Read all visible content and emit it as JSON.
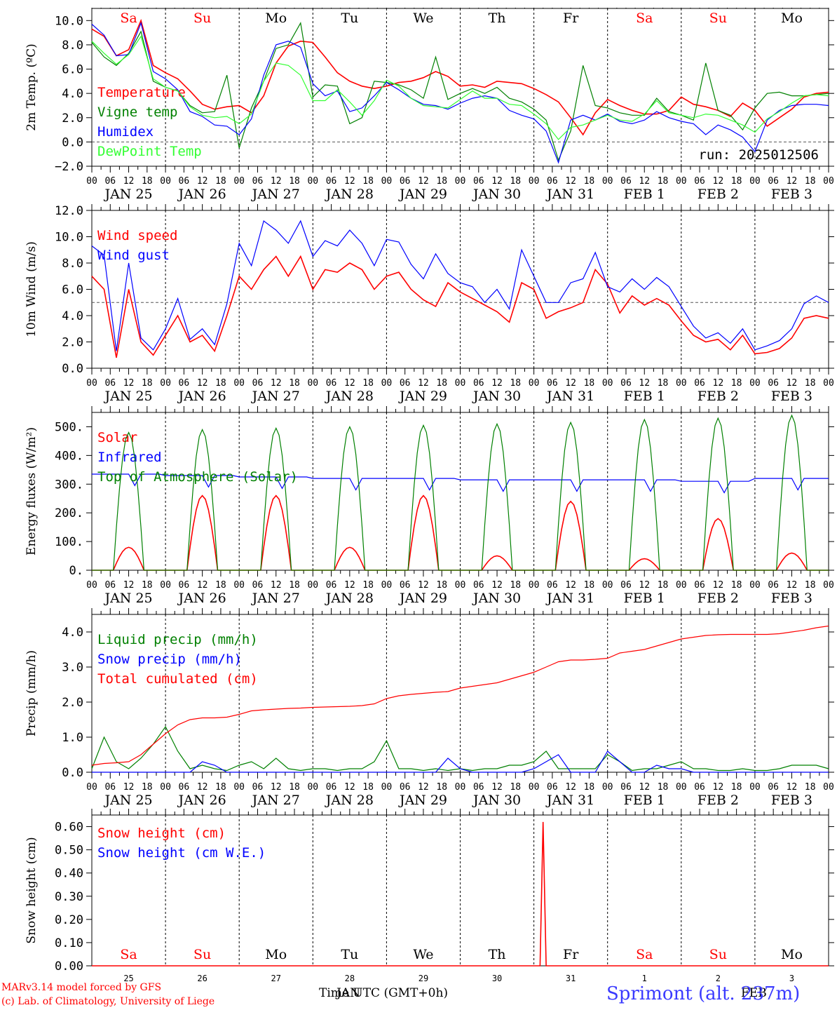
{
  "footer": {
    "model_line1": "MARv3.14 model forced by GFS",
    "model_line2": "(c) Lab. of Climatology, University of Liege",
    "time_label": "Time UTC (GMT+0h)",
    "overlap_label": "JAN",
    "overlap_label2": "FEB",
    "location": "Sprimont (alt. 237m)"
  },
  "colors": {
    "red": "#ff0000",
    "blue": "#0000ff",
    "green": "#008000",
    "lightgreen": "#33ff33",
    "black": "#000000",
    "weekend": "#ff0000"
  },
  "days": {
    "weekdays": [
      "Sa",
      "Su",
      "Mo",
      "Tu",
      "We",
      "Th",
      "Fr",
      "Sa",
      "Su",
      "Mo"
    ],
    "weekend": [
      true,
      true,
      false,
      false,
      false,
      false,
      false,
      true,
      true,
      false
    ],
    "date_labels": [
      "JAN 25",
      "JAN 26",
      "JAN 27",
      "JAN 28",
      "JAN 29",
      "JAN 30",
      "JAN 31",
      "FEB  1",
      "FEB  2",
      "FEB  3"
    ],
    "hour_labels": [
      "00",
      "06",
      "12",
      "18"
    ],
    "last_hour_label": "00",
    "day_numbers": [
      "25",
      "26",
      "27",
      "28",
      "29",
      "30",
      "31",
      "1",
      "2",
      "3"
    ]
  },
  "chart_data": [
    {
      "type": "line",
      "ylabel": "2m Temp. (ºC)",
      "ylim": [
        -2,
        11
      ],
      "yticks": [
        "−2.0",
        "0.0",
        "2.0",
        "4.0",
        "6.0",
        "8.0",
        "10.0"
      ],
      "ytick_values": [
        -2,
        0,
        2,
        4,
        6,
        8,
        10
      ],
      "ref_line": 0,
      "annotation": "run: 2025012506",
      "x_unit": "hours from 00 UTC JAN 25 (3-hourly)",
      "series": [
        {
          "name": "Temperature",
          "color": "red",
          "values": [
            9.3,
            8.7,
            7.1,
            7.6,
            10.0,
            6.3,
            5.7,
            5.2,
            4.2,
            3.1,
            2.7,
            2.9,
            3.0,
            2.4,
            3.8,
            6.5,
            7.9,
            8.3,
            8.2,
            7.0,
            5.7,
            5.0,
            4.6,
            4.4,
            4.6,
            4.9,
            5.0,
            5.3,
            5.8,
            5.4,
            4.6,
            4.7,
            4.5,
            5.0,
            4.9,
            4.8,
            4.4,
            3.9,
            3.3,
            2.0,
            0.6,
            2.4,
            3.5,
            3.0,
            2.6,
            2.3,
            2.3,
            2.6,
            3.7,
            3.1,
            2.9,
            2.6,
            2.1,
            3.2,
            2.6,
            1.3,
            2.0,
            2.7,
            3.7,
            4.0,
            4.1
          ]
        },
        {
          "name": "Vigne temp",
          "color": "green",
          "values": [
            8.2,
            7.0,
            6.3,
            7.3,
            9.1,
            5.0,
            4.5,
            4.2,
            3.0,
            2.4,
            2.5,
            5.5,
            -0.5,
            2.8,
            5.0,
            7.7,
            8.0,
            9.8,
            3.7,
            4.7,
            4.6,
            1.5,
            2.0,
            5.0,
            4.9,
            4.7,
            4.3,
            3.6,
            7.0,
            3.5,
            4.0,
            4.4,
            4.0,
            4.5,
            3.6,
            3.3,
            2.7,
            1.8,
            -1.5,
            0.9,
            6.3,
            3.0,
            2.8,
            2.4,
            2.2,
            2.2,
            3.6,
            2.5,
            2.2,
            1.8,
            6.5,
            2.6,
            2.2,
            1.0,
            2.8,
            4.0,
            4.1,
            3.8,
            3.8,
            3.9,
            4.0
          ]
        },
        {
          "name": "Humidex",
          "color": "blue",
          "values": [
            9.7,
            8.8,
            7.1,
            7.2,
            9.8,
            5.8,
            5.2,
            4.3,
            2.5,
            2.1,
            1.4,
            1.3,
            0.6,
            1.9,
            5.5,
            8.0,
            8.3,
            7.8,
            4.8,
            3.8,
            4.2,
            2.5,
            2.8,
            3.8,
            4.9,
            4.3,
            3.6,
            3.1,
            3.0,
            2.7,
            3.2,
            3.6,
            3.8,
            3.6,
            2.6,
            2.2,
            1.9,
            0.9,
            -1.7,
            1.8,
            2.2,
            1.8,
            2.3,
            1.7,
            1.5,
            1.8,
            2.5,
            2.0,
            1.7,
            1.5,
            0.6,
            1.4,
            1.0,
            0.4,
            -0.8,
            1.8,
            2.6,
            3.0,
            3.1,
            3.1,
            3.0
          ]
        },
        {
          "name": "DewPoint Temp",
          "color": "lightgreen",
          "values": [
            8.3,
            7.3,
            6.4,
            7.2,
            8.7,
            5.2,
            4.5,
            4.2,
            2.9,
            2.2,
            2.0,
            2.1,
            1.5,
            2.3,
            5.0,
            6.5,
            6.3,
            5.5,
            3.4,
            3.4,
            4.3,
            3.3,
            2.2,
            3.4,
            5.1,
            4.6,
            3.6,
            3.0,
            2.9,
            2.8,
            3.5,
            4.2,
            3.6,
            3.6,
            3.1,
            3.0,
            2.3,
            1.5,
            0.2,
            1.2,
            1.4,
            1.8,
            2.2,
            1.8,
            1.7,
            2.3,
            3.4,
            2.4,
            2.2,
            2.0,
            2.3,
            2.2,
            1.8,
            1.4,
            0.8,
            1.9,
            2.5,
            3.2,
            3.8,
            3.9,
            3.8
          ]
        }
      ]
    },
    {
      "type": "line",
      "ylabel": "10m Wind (m/s)",
      "ylim": [
        0,
        12
      ],
      "yticks": [
        "0.0",
        "2.0",
        "4.0",
        "6.0",
        "8.0",
        "10.0",
        "12.0"
      ],
      "ytick_values": [
        0,
        2,
        4,
        6,
        8,
        10,
        12
      ],
      "ref_line": 5,
      "x_unit": "hours from 00 UTC JAN 25 (3-hourly)",
      "series": [
        {
          "name": "Wind speed",
          "color": "red",
          "values": [
            7.0,
            6.0,
            0.8,
            6.0,
            2.0,
            1.0,
            2.5,
            4.0,
            2.0,
            2.5,
            1.3,
            4.0,
            7.0,
            6.0,
            7.5,
            8.5,
            7.0,
            8.5,
            6.0,
            7.5,
            7.3,
            8.0,
            7.5,
            6.0,
            7.0,
            7.3,
            6.0,
            5.2,
            4.7,
            6.5,
            5.8,
            5.3,
            4.8,
            4.3,
            3.5,
            6.5,
            6.0,
            3.8,
            4.3,
            4.6,
            5.0,
            7.5,
            6.4,
            4.2,
            5.5,
            4.8,
            5.3,
            4.8,
            3.6,
            2.5,
            2.0,
            2.2,
            1.4,
            2.5,
            1.1,
            1.2,
            1.5,
            2.3,
            3.8,
            4.0,
            3.8
          ]
        },
        {
          "name": "Wind gust",
          "color": "blue",
          "values": [
            9.3,
            8.6,
            1.3,
            8.0,
            2.3,
            1.4,
            3.0,
            5.3,
            2.2,
            3.0,
            1.8,
            4.9,
            9.5,
            7.8,
            11.2,
            10.5,
            9.5,
            11.2,
            8.5,
            9.7,
            9.3,
            10.5,
            9.5,
            7.8,
            9.8,
            9.6,
            7.9,
            6.8,
            8.7,
            7.2,
            6.5,
            6.2,
            5.0,
            6.0,
            4.5,
            9.0,
            7.0,
            5.0,
            5.0,
            6.5,
            6.8,
            8.8,
            6.2,
            5.8,
            6.8,
            6.0,
            6.9,
            6.2,
            4.7,
            3.2,
            2.3,
            2.7,
            1.9,
            3.0,
            1.4,
            1.7,
            2.1,
            3.0,
            4.9,
            5.5,
            5.0
          ]
        }
      ]
    },
    {
      "type": "line",
      "ylabel": "Energy fluxes (W/m²)",
      "ylim": [
        0,
        550
      ],
      "yticks": [
        "0.",
        "100.",
        "200.",
        "300.",
        "400.",
        "500."
      ],
      "ytick_values": [
        0,
        100,
        200,
        300,
        400,
        500
      ],
      "x_unit": "hours from 00 UTC JAN 25 (hourly peaks)",
      "peak_hours": [
        0,
        24,
        48,
        72,
        96,
        120,
        144,
        168,
        192,
        216
      ],
      "series": [
        {
          "name": "Solar",
          "color": "red",
          "peaks": [
            80,
            260,
            260,
            80,
            260,
            50,
            240,
            40,
            180,
            60
          ]
        },
        {
          "name": "Infrared",
          "color": "blue",
          "baseline": [
            335,
            330,
            325,
            320,
            320,
            315,
            315,
            315,
            310,
            320
          ]
        },
        {
          "name": "Top of Atmosphere (Solar)",
          "color": "green",
          "peaks": [
            480,
            490,
            495,
            500,
            505,
            510,
            515,
            525,
            530,
            540
          ]
        }
      ]
    },
    {
      "type": "line",
      "ylabel": "Precip (mm/h)",
      "ylim": [
        0,
        4.5
      ],
      "yticks": [
        "0.0",
        "1.0",
        "2.0",
        "3.0",
        "4.0"
      ],
      "ytick_values": [
        0,
        1,
        2,
        3,
        4
      ],
      "x_unit": "hours from 00 UTC JAN 25 (3-hourly)",
      "series": [
        {
          "name": "Liquid precip (mm/h)",
          "color": "green",
          "values": [
            0.1,
            1.0,
            0.3,
            0.1,
            0.4,
            0.8,
            1.3,
            0.6,
            0.1,
            0.2,
            0.1,
            0.05,
            0.2,
            0.3,
            0.1,
            0.4,
            0.1,
            0.05,
            0.1,
            0.1,
            0.05,
            0.1,
            0.1,
            0.3,
            0.9,
            0.1,
            0.1,
            0.05,
            0.1,
            0.05,
            0.1,
            0.05,
            0.1,
            0.1,
            0.2,
            0.2,
            0.3,
            0.6,
            0.1,
            0.1,
            0.1,
            0.1,
            0.5,
            0.3,
            0.05,
            0.1,
            0.1,
            0.2,
            0.3,
            0.1,
            0.1,
            0.05,
            0.05,
            0.1,
            0.05,
            0.05,
            0.1,
            0.2,
            0.2,
            0.2,
            0.1
          ]
        },
        {
          "name": "Snow precip (mm/h)",
          "color": "blue",
          "values": [
            0,
            0,
            0,
            0,
            0,
            0,
            0,
            0,
            0,
            0.3,
            0.2,
            0,
            0,
            0,
            0,
            0,
            0,
            0,
            0,
            0,
            0,
            0,
            0,
            0,
            0,
            0,
            0,
            0,
            0,
            0.4,
            0.1,
            0,
            0,
            0,
            0,
            0,
            0.1,
            0.3,
            0.5,
            0,
            0,
            0,
            0.6,
            0.3,
            0,
            0,
            0.2,
            0.1,
            0.1,
            0,
            0,
            0,
            0,
            0,
            0,
            0,
            0,
            0,
            0,
            0,
            0
          ]
        },
        {
          "name": "Total cumulated (cm)",
          "color": "red",
          "values": [
            0.2,
            0.25,
            0.27,
            0.3,
            0.5,
            0.8,
            1.1,
            1.35,
            1.5,
            1.55,
            1.55,
            1.57,
            1.65,
            1.75,
            1.78,
            1.8,
            1.82,
            1.83,
            1.85,
            1.86,
            1.87,
            1.88,
            1.9,
            1.95,
            2.1,
            2.18,
            2.22,
            2.25,
            2.28,
            2.3,
            2.4,
            2.45,
            2.5,
            2.55,
            2.65,
            2.75,
            2.85,
            3.0,
            3.15,
            3.2,
            3.2,
            3.22,
            3.25,
            3.4,
            3.45,
            3.5,
            3.6,
            3.7,
            3.8,
            3.85,
            3.9,
            3.92,
            3.93,
            3.93,
            3.93,
            3.93,
            3.95,
            4.0,
            4.05,
            4.12,
            4.17
          ]
        }
      ]
    },
    {
      "type": "line",
      "ylabel": "Snow height (cm)",
      "ylim": [
        0,
        0.65
      ],
      "yticks": [
        "0.00",
        "0.10",
        "0.20",
        "0.30",
        "0.40",
        "0.50",
        "0.60"
      ],
      "ytick_values": [
        0,
        0.1,
        0.2,
        0.3,
        0.4,
        0.5,
        0.6
      ],
      "x_unit": "hours from 00 UTC JAN 25",
      "series": [
        {
          "name": "Snow height (cm)",
          "color": "red",
          "spike_hour": 147,
          "spike_value": 0.62
        },
        {
          "name": "Snow height (cm W.E.)",
          "color": "blue",
          "values": []
        }
      ]
    }
  ]
}
